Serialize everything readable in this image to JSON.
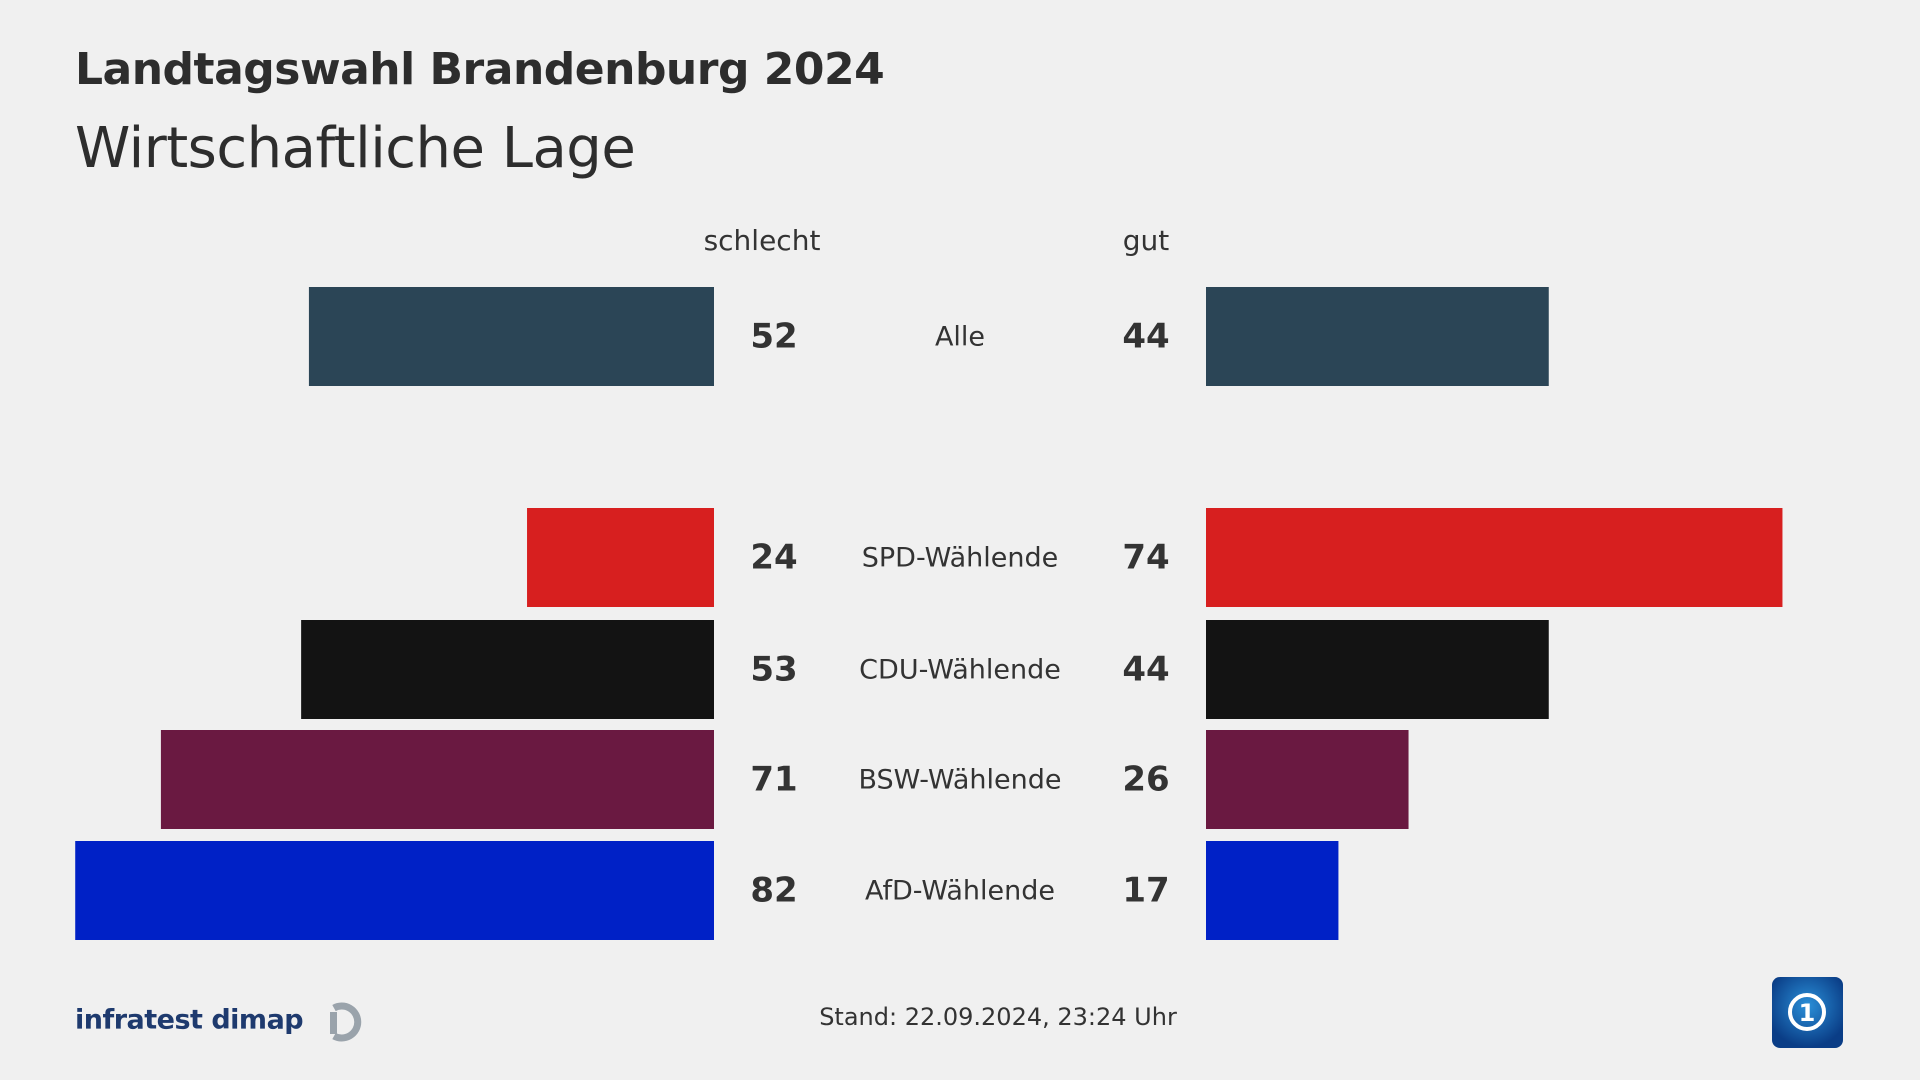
{
  "header": {
    "title": "Landtagswahl Brandenburg 2024",
    "subtitle": "Wirtschaftliche Lage"
  },
  "chart_data": {
    "type": "bar",
    "orientation": "diverging-horizontal",
    "left_label": "schlecht",
    "right_label": "gut",
    "categories": [
      "Alle",
      "SPD-Wählende",
      "CDU-Wählende",
      "BSW-Wählende",
      "AfD-Wählende"
    ],
    "series": [
      {
        "name": "schlecht",
        "values": [
          52,
          24,
          53,
          71,
          82
        ]
      },
      {
        "name": "gut",
        "values": [
          44,
          74,
          44,
          26,
          17
        ]
      }
    ],
    "colors": [
      "#2b4556",
      "#d71f1f",
      "#131313",
      "#6a1941",
      "#0021c6"
    ]
  },
  "footer": {
    "source": "infratest dimap",
    "stand": "Stand:  22.09.2024, 23:24 Uhr",
    "logo": "ARD Das Erste logo"
  }
}
